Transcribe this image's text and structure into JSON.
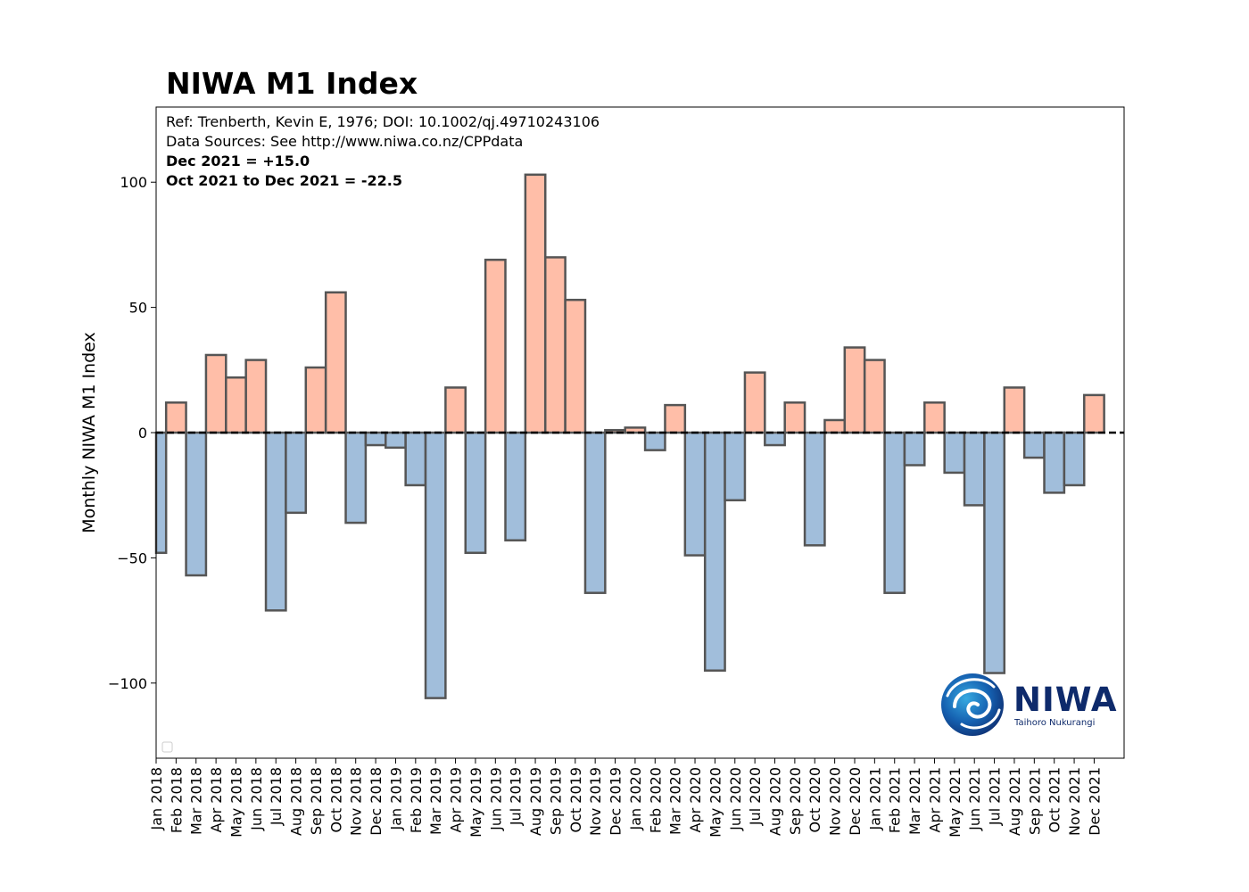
{
  "chart_data": {
    "type": "bar",
    "title": "NIWA M1 Index",
    "ylabel": "Monthly NIWA M1 Index",
    "xlabel": "",
    "ylim": [
      -130,
      130
    ],
    "yticks": [
      -100,
      -50,
      0,
      50,
      100
    ],
    "ytick_labels": [
      "−100",
      "−50",
      "0",
      "50",
      "100"
    ],
    "grid": false,
    "zero_line": "dashed",
    "annotations": [
      {
        "text": "Ref: Trenberth, Kevin E, 1976; DOI: 10.1002/qj.49710243106",
        "bold": false
      },
      {
        "text": "Data Sources: See http://www.niwa.co.nz/CPPdata",
        "bold": false
      },
      {
        "text": "Dec 2021 = +15.0",
        "bold": true
      },
      {
        "text": "Oct 2021 to Dec 2021 = -22.5",
        "bold": true
      }
    ],
    "colors": {
      "positive": "#ffbea8",
      "negative": "#a1bedb",
      "edge": "#555555"
    },
    "categories": [
      "Jan 2018",
      "Feb 2018",
      "Mar 2018",
      "Apr 2018",
      "May 2018",
      "Jun 2018",
      "Jul 2018",
      "Aug 2018",
      "Sep 2018",
      "Oct 2018",
      "Nov 2018",
      "Dec 2018",
      "Jan 2019",
      "Feb 2019",
      "Mar 2019",
      "Apr 2019",
      "May 2019",
      "Jun 2019",
      "Jul 2019",
      "Aug 2019",
      "Sep 2019",
      "Oct 2019",
      "Nov 2019",
      "Dec 2019",
      "Jan 2020",
      "Feb 2020",
      "Mar 2020",
      "Apr 2020",
      "May 2020",
      "Jun 2020",
      "Jul 2020",
      "Aug 2020",
      "Sep 2020",
      "Oct 2020",
      "Nov 2020",
      "Dec 2020",
      "Jan 2021",
      "Feb 2021",
      "Mar 2021",
      "Apr 2021",
      "May 2021",
      "Jun 2021",
      "Jul 2021",
      "Aug 2021",
      "Sep 2021",
      "Oct 2021",
      "Nov 2021",
      "Dec 2021"
    ],
    "values": [
      -48,
      12,
      -57,
      31,
      22,
      29,
      -71,
      -32,
      26,
      56,
      -36,
      -5,
      -6,
      -21,
      -106,
      18,
      -48,
      69,
      -43,
      103,
      70,
      53,
      -64,
      1,
      2,
      -7,
      11,
      -49,
      -95,
      -27,
      24,
      -5,
      12,
      -45,
      5,
      34,
      29,
      -64,
      -13,
      12,
      -16,
      -29,
      -96,
      18,
      -10,
      -24,
      -21,
      15
    ]
  },
  "logo": {
    "name": "NIWA",
    "tagline": "Taihoro Nukurangi"
  }
}
